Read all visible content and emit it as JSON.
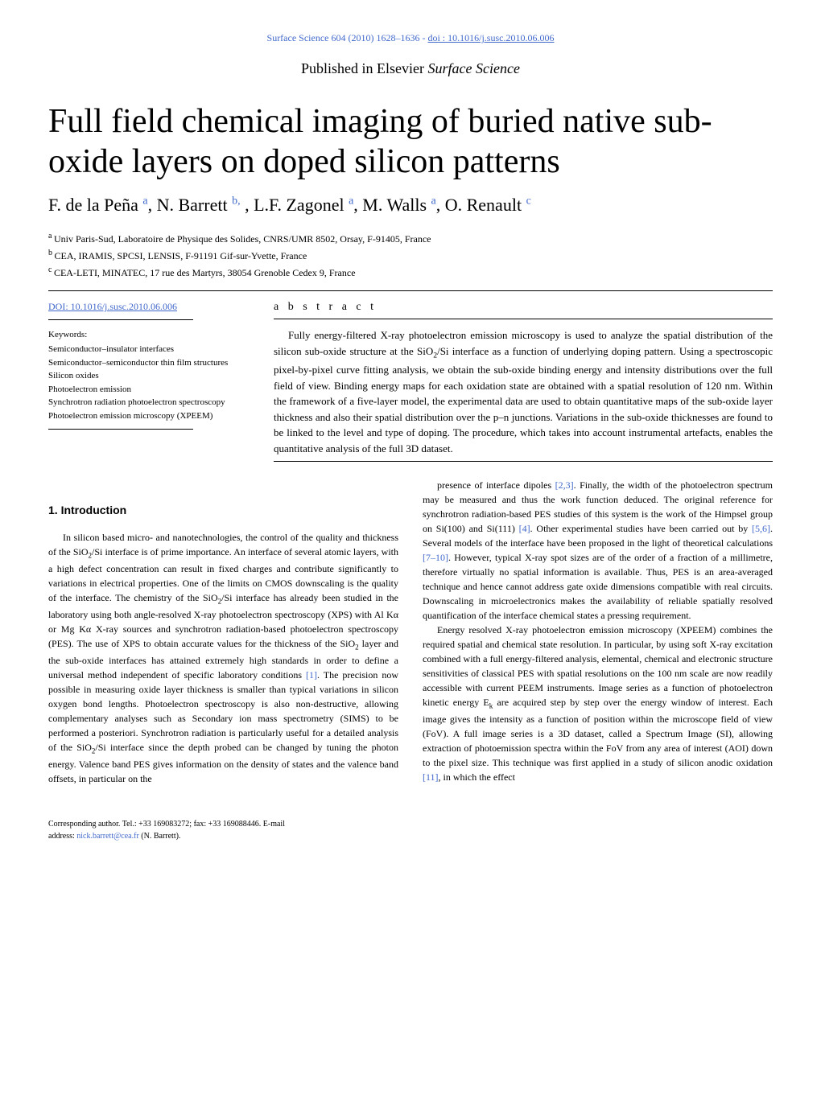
{
  "header": {
    "journal_ref": "Surface Science 604 (2010) 1628–1636",
    "separator": " - ",
    "doi_label": "doi : 10.1016/j.susc.2010.06.006"
  },
  "published": {
    "prefix": "Published in Elsevier ",
    "journal": "Surface Science"
  },
  "title": "Full field chemical imaging of buried native sub-oxide layers on doped silicon patterns",
  "authors_html": "F. de la Peña <sup>a</sup>, N. Barrett <sup>b,</sup> , L.F. Zagonel <sup>a</sup>, M. Walls <sup>a</sup>, O. Renault <sup>c</sup>",
  "affiliations": [
    "Univ Paris-Sud, Laboratoire de Physique des Solides, CNRS/UMR 8502, Orsay, F-91405, France",
    "CEA, IRAMIS, SPCSI, LENSIS, F-91191 Gif-sur-Yvette, France",
    "CEA-LETI, MINATEC, 17 rue des Martyrs, 38054 Grenoble Cedex 9, France"
  ],
  "aff_markers": [
    "a",
    "b",
    "c"
  ],
  "doi_link": "DOI: 10.1016/j.susc.2010.06.006",
  "keywords_label": "Keywords:",
  "keywords": [
    "Semiconductor–insulator interfaces",
    "Semiconductor–semiconductor thin film structures",
    "Silicon oxides",
    "Photoelectron emission",
    "Synchrotron radiation photoelectron spectroscopy",
    "Photoelectron emission microscopy (XPEEM)"
  ],
  "abstract_label": "a b s t r a c t",
  "abstract_text": "Fully energy-filtered X-ray photoelectron emission microscopy is used to analyze the spatial distribution of the silicon sub-oxide structure at the SiO2/Si interface as a function of underlying doping pattern. Using a spectroscopic pixel-by-pixel curve fitting analysis, we obtain the sub-oxide binding energy and intensity distributions over the full field of view. Binding energy maps for each oxidation state are obtained with a spatial resolution of 120 nm. Within the framework of a five-layer model, the experimental data are used to obtain quantitative maps of the sub-oxide layer thickness and also their spatial distribution over the p–n junctions. Variations in the sub-oxide thicknesses are found to be linked to the level and type of doping. The procedure, which takes into account instrumental artefacts, enables the quantitative analysis of the full 3D dataset.",
  "section1_title": "1. Introduction",
  "col1_p1": "In silicon based micro- and nanotechnologies, the control of the quality and thickness of the SiO2/Si interface is of prime importance. An interface of several atomic layers, with a high defect concentration can result in fixed charges and contribute significantly to variations in electrical properties. One of the limits on CMOS downscaling is the quality of the interface. The chemistry of the SiO2/Si interface has already been studied in the laboratory using both angle-resolved X-ray photoelectron spectroscopy (XPS) with Al Kα or Mg Kα X-ray sources and synchrotron radiation-based photoelectron spectroscopy (PES). The use of XPS to obtain accurate values for the thickness of the SiO2 layer and the sub-oxide interfaces has attained extremely high standards in order to define a universal method independent of specific laboratory conditions [1]. The precision now possible in measuring oxide layer thickness is smaller than typical variations in silicon oxygen bond lengths. Photoelectron spectroscopy is also non-destructive, allowing complementary analyses such as Secondary ion mass spectrometry (SIMS) to be performed a posteriori. Synchrotron radiation is particularly useful for a detailed analysis of the SiO2/Si interface since the depth probed can be changed by tuning the photon energy. Valence band PES gives information on the density of states and the valence band offsets, in particular on the",
  "col2_p1": "presence of interface dipoles [2,3]. Finally, the width of the photoelectron spectrum may be measured and thus the work function deduced. The original reference for synchrotron radiation-based PES studies of this system is the work of the Himpsel group on Si(100) and Si(111) [4]. Other experimental studies have been carried out by [5,6]. Several models of the interface have been proposed in the light of theoretical calculations [7–10]. However, typical X-ray spot sizes are of the order of a fraction of a millimetre, therefore virtually no spatial information is available. Thus, PES is an area-averaged technique and hence cannot address gate oxide dimensions compatible with real circuits. Downscaling in microelectronics makes the availability of reliable spatially resolved quantification of the interface chemical states a pressing requirement.",
  "col2_p2": "Energy resolved X-ray photoelectron emission microscopy (XPEEM) combines the required spatial and chemical state resolution. In particular, by using soft X-ray excitation combined with a full energy-filtered analysis, elemental, chemical and electronic structure sensitivities of classical PES with spatial resolutions on the 100 nm scale are now readily accessible with current PEEM instruments. Image series as a function of photoelectron kinetic energy Ek are acquired step by step over the energy window of interest. Each image gives the intensity as a function of position within the microscope field of view (FoV). A full image series is a 3D dataset, called a Spectrum Image (SI), allowing extraction of photoemission spectra within the FoV from any area of interest (AOI) down to the pixel size. This technique was first applied in a study of silicon anodic oxidation [11], in which the effect",
  "corresponding": {
    "line1": "Corresponding author. Tel.: +33 169083272; fax: +33 169088446. E-mail",
    "line2_prefix": "address: ",
    "email": "nick.barrett@cea.fr",
    "line2_suffix": " (N. Barrett)."
  },
  "colors": {
    "link": "#4169cc",
    "text": "#000000",
    "bg": "#ffffff"
  }
}
